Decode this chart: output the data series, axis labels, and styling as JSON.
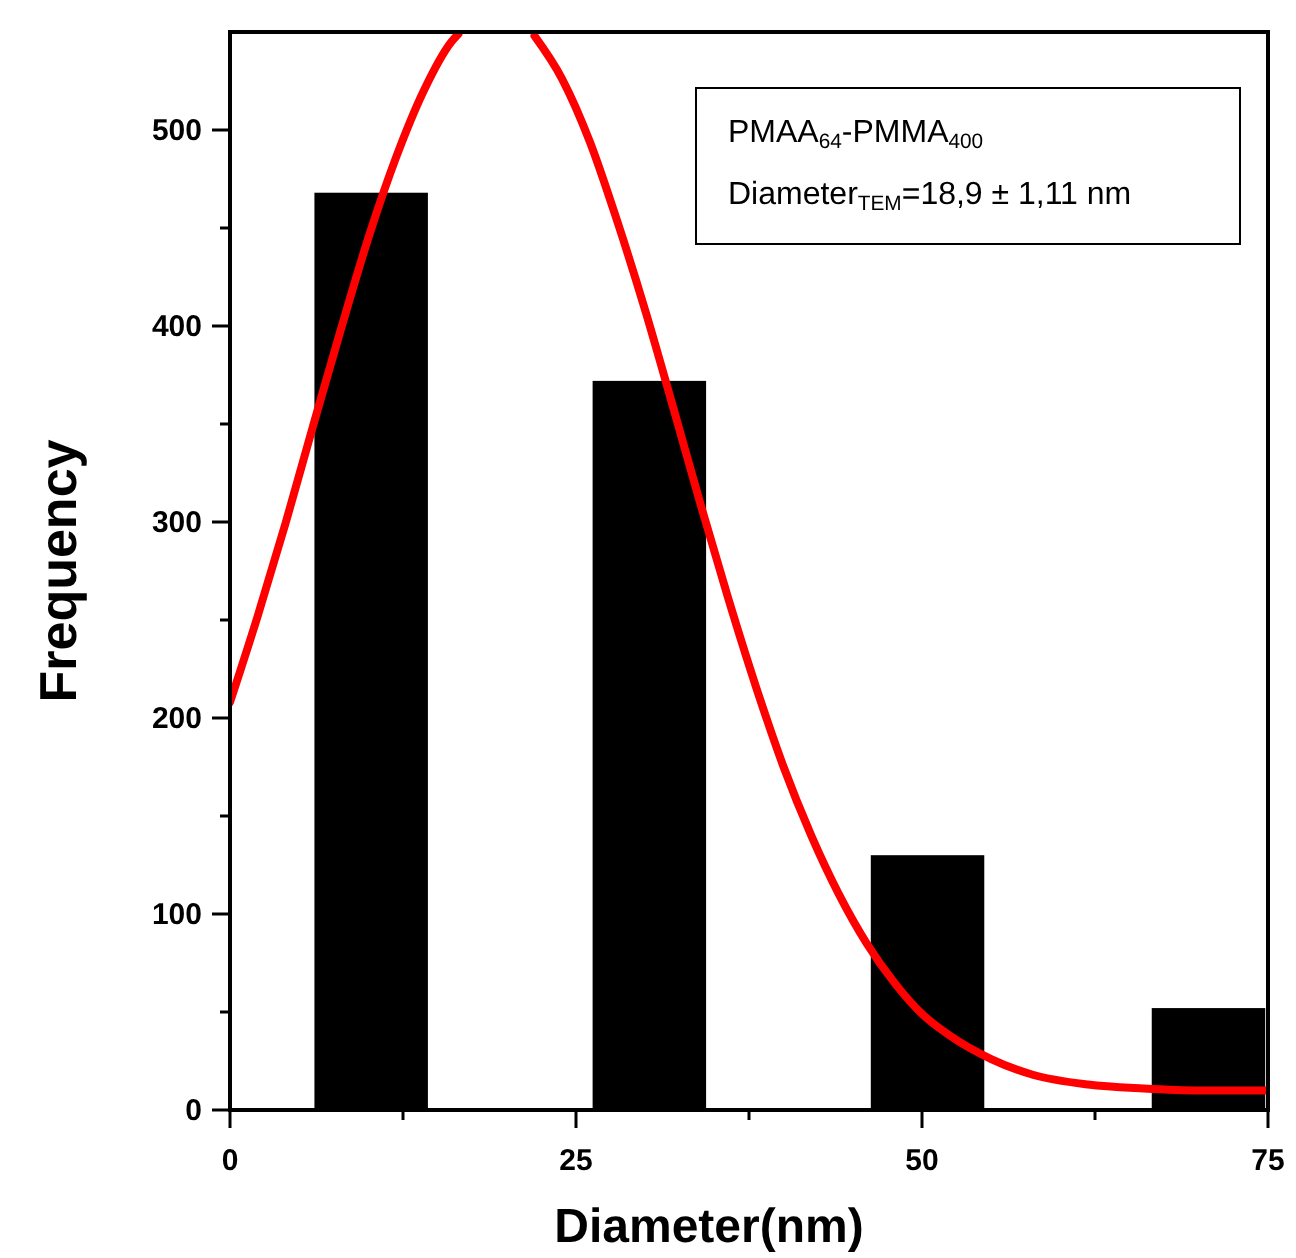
{
  "chart_data": {
    "type": "bar",
    "xlabel": "Diameter(nm)",
    "ylabel": "Frequency",
    "xlim": [
      0,
      75
    ],
    "ylim": [
      0,
      550
    ],
    "xticks": [
      0,
      {
        "value": 12.5,
        "label": null
      },
      25,
      {
        "value": 37.5,
        "label": null
      },
      50,
      {
        "value": 62.5,
        "label": null
      },
      75
    ],
    "yticks": [
      0,
      {
        "value": 50,
        "label": null
      },
      100,
      {
        "value": 150,
        "label": null
      },
      200,
      {
        "value": 250,
        "label": null
      },
      300,
      {
        "value": 350,
        "label": null
      },
      400,
      {
        "value": 450,
        "label": null
      },
      500
    ],
    "series": [
      {
        "color": "#000000",
        "x": [
          10.2,
          30.3,
          50.4,
          70.7
        ],
        "values": [
          468,
          372,
          130,
          52
        ]
      },
      {
        "type": "line",
        "color": "#ff0000",
        "x": [
          0,
          2,
          4,
          6,
          8,
          10,
          12,
          14,
          16,
          16.5,
          19,
          22,
          24,
          26,
          28,
          30,
          32,
          34,
          36,
          38,
          40,
          42,
          44,
          46,
          48,
          50,
          52,
          55,
          58,
          62,
          66,
          70,
          75
        ],
        "values": [
          208,
          252,
          299,
          349,
          398,
          445,
          486,
          520,
          545,
          549,
          null,
          548,
          526,
          494,
          453,
          408,
          359,
          309,
          261,
          216,
          175,
          140,
          110,
          85,
          65,
          49,
          38,
          26,
          18,
          13,
          11,
          10,
          10
        ]
      }
    ],
    "annotations": [
      "PMAA$_{64}$-PMMA$_{400}$",
      "Diameter$_{TEM}$=18,9 ± 1,11 nm"
    ],
    "grid": false
  }
}
